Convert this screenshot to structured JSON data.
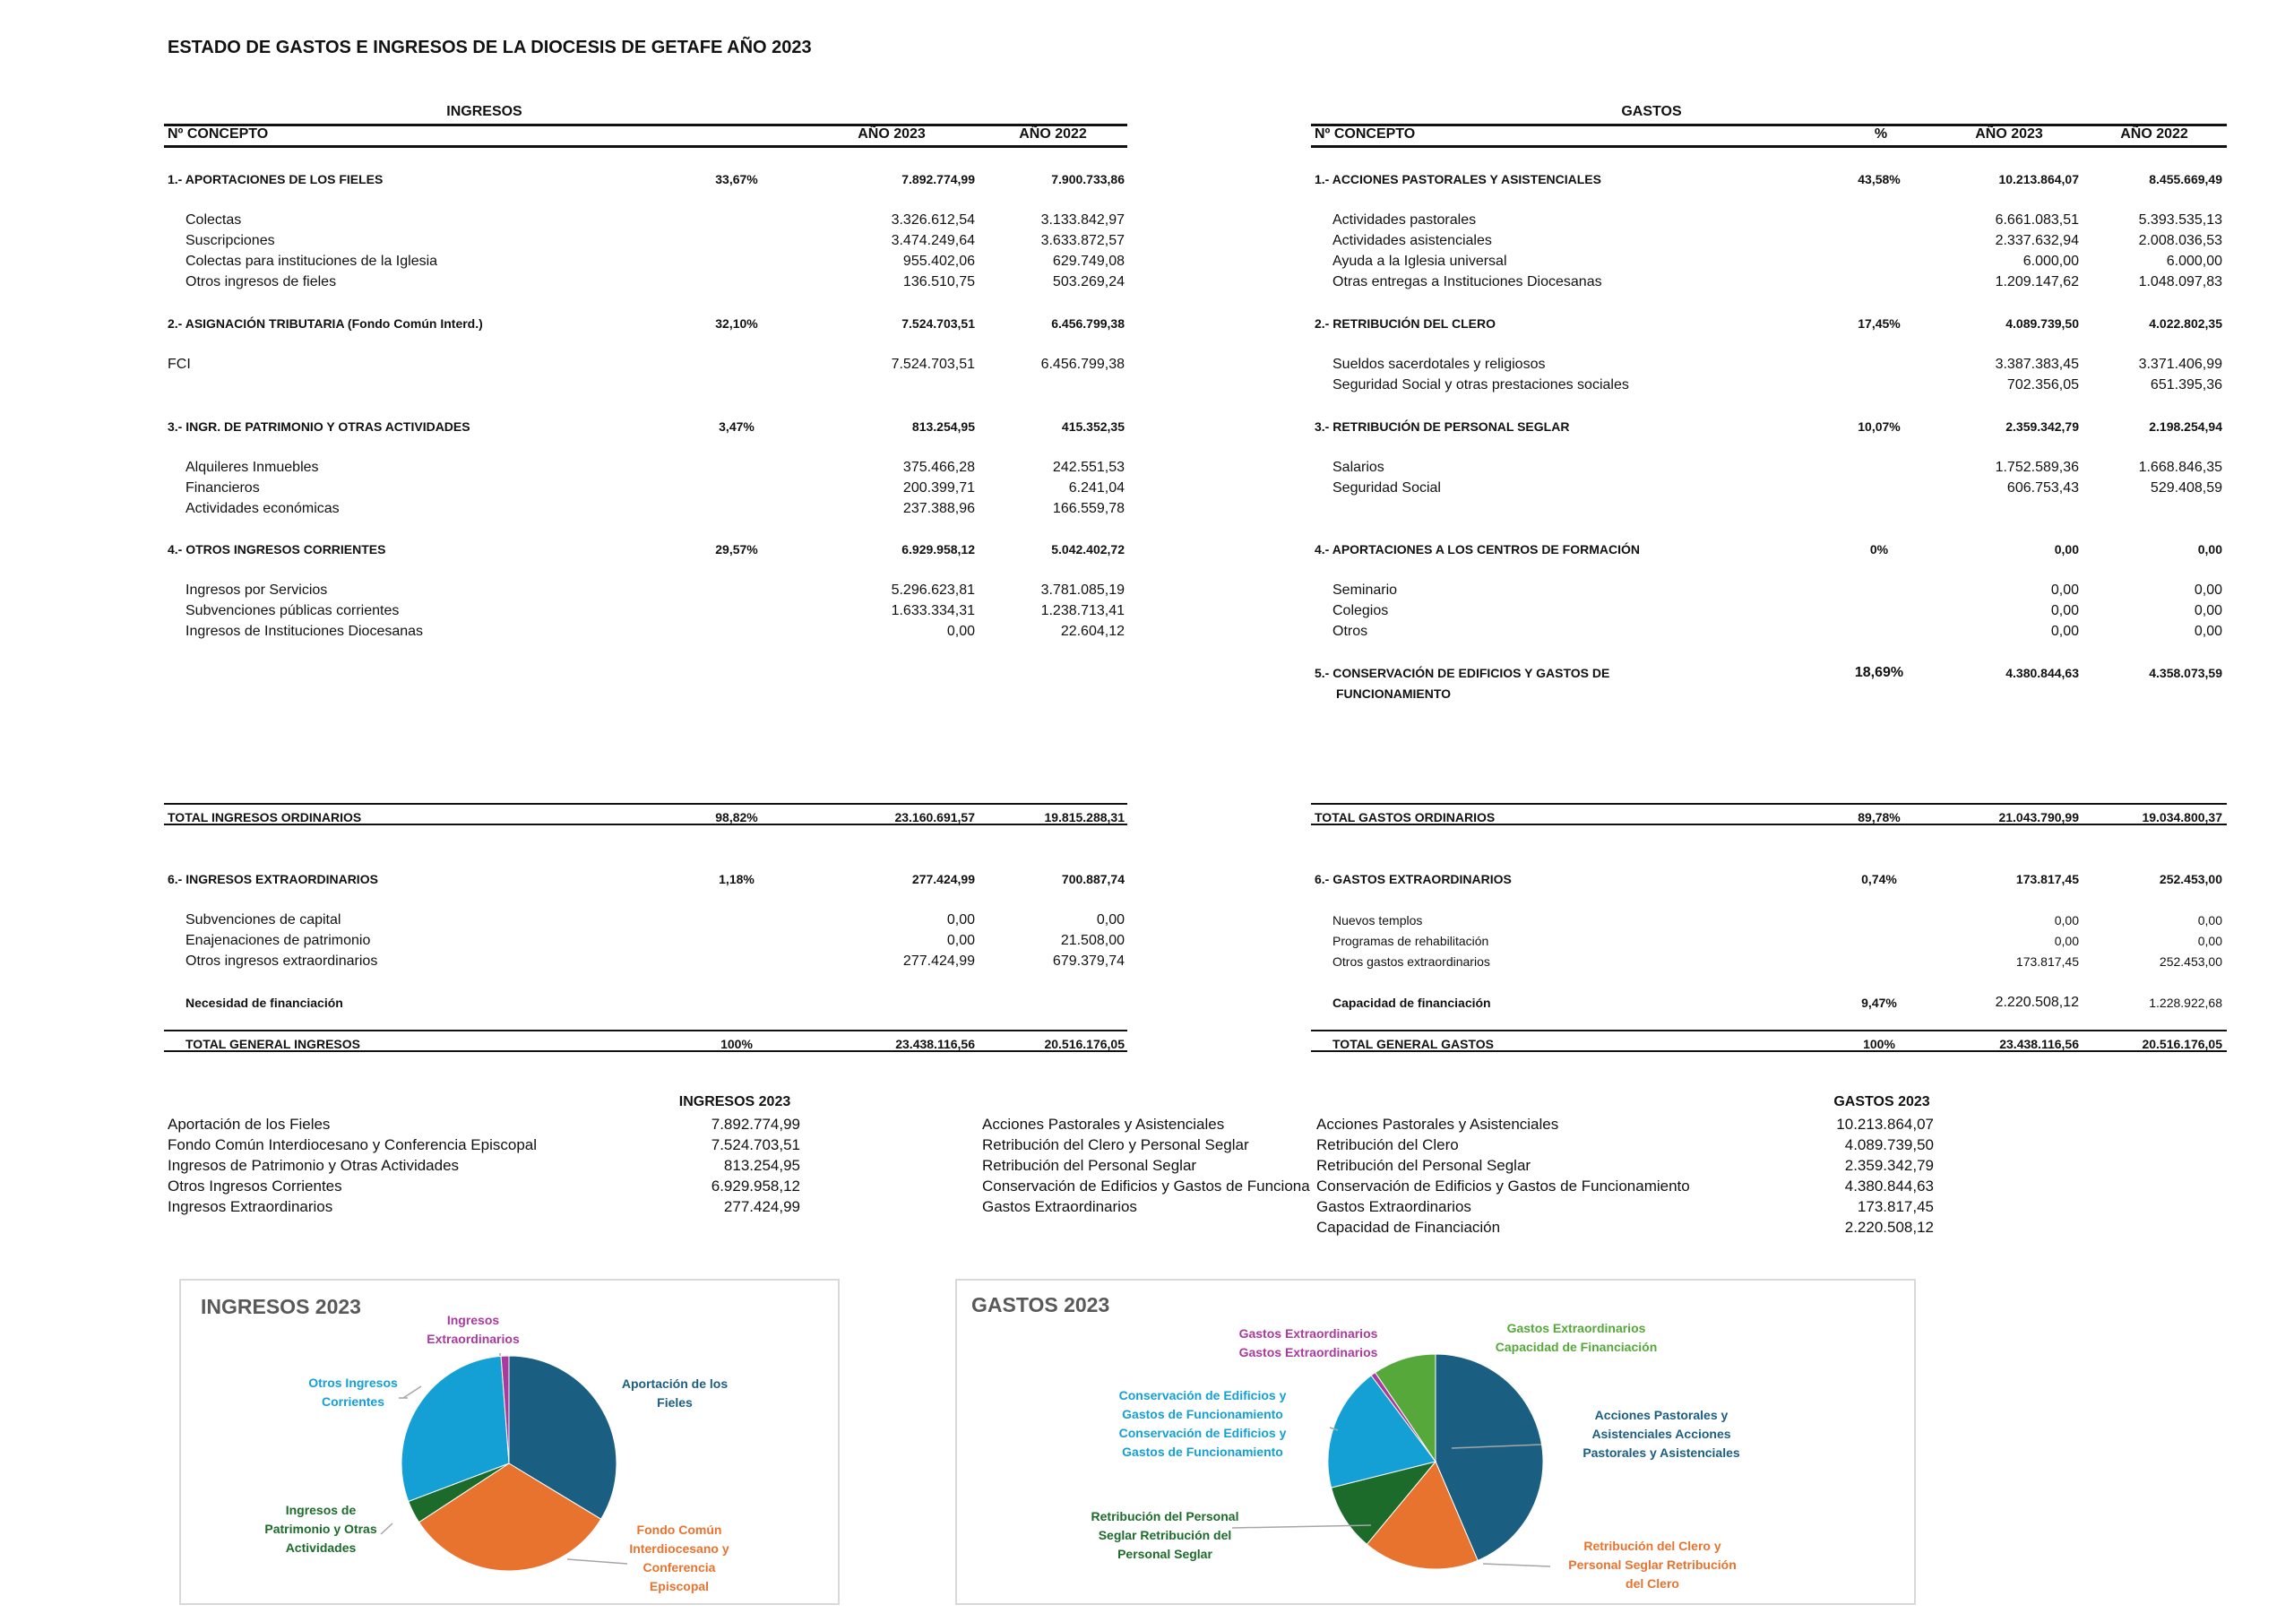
{
  "title": "ESTADO DE GASTOS E INGRESOS DE LA DIOCESIS DE GETAFE   AÑO 2023",
  "ingresos": {
    "heading": "INGRESOS",
    "headers": {
      "concepto": "Nº CONCEPTO",
      "y2023": "AÑO 2023",
      "y2022": "AÑO 2022"
    },
    "rows": [
      {
        "type": "sec",
        "concept": "1.- APORTACIONES DE LOS FIELES",
        "pct": "33,67%",
        "y2023": "7.892.774,99",
        "y2022": "7.900.733,86"
      },
      {
        "type": "item",
        "concept": "Colectas",
        "y2023": "3.326.612,54",
        "y2022": "3.133.842,97"
      },
      {
        "type": "item",
        "concept": "Suscripciones",
        "y2023": "3.474.249,64",
        "y2022": "3.633.872,57"
      },
      {
        "type": "item",
        "concept": "Colectas para instituciones de la Iglesia",
        "y2023": "955.402,06",
        "y2022": "629.749,08"
      },
      {
        "type": "item",
        "concept": "Otros ingresos de fieles",
        "y2023": "136.510,75",
        "y2022": "503.269,24"
      },
      {
        "type": "sec",
        "concept": "2.- ASIGNACIÓN TRIBUTARIA (Fondo Común Interd.)",
        "pct": "32,10%",
        "y2023": "7.524.703,51",
        "y2022": "6.456.799,38"
      },
      {
        "type": "plain",
        "concept": "FCI",
        "y2023": "7.524.703,51",
        "y2022": "6.456.799,38"
      },
      {
        "type": "sec",
        "concept": "3.- INGR. DE PATRIMONIO Y OTRAS ACTIVIDADES",
        "pct": "3,47%",
        "y2023": "813.254,95",
        "y2022": "415.352,35"
      },
      {
        "type": "item",
        "concept": "Alquileres Inmuebles",
        "y2023": "375.466,28",
        "y2022": "242.551,53"
      },
      {
        "type": "item",
        "concept": "Financieros",
        "y2023": "200.399,71",
        "y2022": "6.241,04"
      },
      {
        "type": "item",
        "concept": "Actividades económicas",
        "y2023": "237.388,96",
        "y2022": "166.559,78"
      },
      {
        "type": "sec",
        "concept": "4.- OTROS INGRESOS CORRIENTES",
        "pct": "29,57%",
        "y2023": "6.929.958,12",
        "y2022": "5.042.402,72"
      },
      {
        "type": "item",
        "concept": "Ingresos por Servicios",
        "y2023": "5.296.623,81",
        "y2022": "3.781.085,19"
      },
      {
        "type": "item",
        "concept": "Subvenciones públicas corrientes",
        "y2023": "1.633.334,31",
        "y2022": "1.238.713,41"
      },
      {
        "type": "item",
        "concept": "Ingresos de Instituciones Diocesanas",
        "y2023": "0,00",
        "y2022": "22.604,12"
      },
      {
        "type": "total",
        "concept": "TOTAL INGRESOS ORDINARIOS",
        "pct": "98,82%",
        "y2023": "23.160.691,57",
        "y2022": "19.815.288,31"
      },
      {
        "type": "sec",
        "concept": "6.- INGRESOS EXTRAORDINARIOS",
        "pct": "1,18%",
        "y2023": "277.424,99",
        "y2022": "700.887,74"
      },
      {
        "type": "item",
        "concept": "Subvenciones de capital",
        "y2023": "0,00",
        "y2022": "0,00"
      },
      {
        "type": "item",
        "concept": "Enajenaciones de patrimonio",
        "y2023": "0,00",
        "y2022": "21.508,00"
      },
      {
        "type": "item",
        "concept": "Otros ingresos extraordinarios",
        "y2023": "277.424,99",
        "y2022": "679.379,74"
      },
      {
        "type": "secind",
        "concept": "Necesidad de financiación"
      },
      {
        "type": "totalind",
        "concept": "TOTAL GENERAL INGRESOS",
        "pct": "100%",
        "y2023": "23.438.116,56",
        "y2022": "20.516.176,05"
      }
    ]
  },
  "gastos": {
    "heading": "GASTOS",
    "headers": {
      "concepto": "Nº CONCEPTO",
      "pct": "%",
      "y2023": "AÑO 2023",
      "y2022": "AÑO 2022"
    },
    "rows": [
      {
        "type": "sec",
        "concept": "1.- ACCIONES PASTORALES Y ASISTENCIALES",
        "pct": "43,58%",
        "y2023": "10.213.864,07",
        "y2022": "8.455.669,49"
      },
      {
        "type": "item",
        "concept": "Actividades pastorales",
        "y2023": "6.661.083,51",
        "y2022": "5.393.535,13"
      },
      {
        "type": "item",
        "concept": "Actividades asistenciales",
        "y2023": "2.337.632,94",
        "y2022": "2.008.036,53"
      },
      {
        "type": "item",
        "concept": "Ayuda a la Iglesia universal",
        "y2023": "6.000,00",
        "y2022": "6.000,00"
      },
      {
        "type": "item",
        "concept": "Otras entregas a Instituciones Diocesanas",
        "y2023": "1.209.147,62",
        "y2022": "1.048.097,83"
      },
      {
        "type": "sec",
        "concept": "2.- RETRIBUCIÓN DEL CLERO",
        "pct": "17,45%",
        "y2023": "4.089.739,50",
        "y2022": "4.022.802,35"
      },
      {
        "type": "item",
        "concept": "Sueldos sacerdotales y religiosos",
        "y2023": "3.387.383,45",
        "y2022": "3.371.406,99"
      },
      {
        "type": "item",
        "concept": "Seguridad Social y otras prestaciones sociales",
        "y2023": "702.356,05",
        "y2022": "651.395,36"
      },
      {
        "type": "sec",
        "concept": "3.- RETRIBUCIÓN DE PERSONAL SEGLAR",
        "pct": "10,07%",
        "y2023": "2.359.342,79",
        "y2022": "2.198.254,94"
      },
      {
        "type": "item",
        "concept": "Salarios",
        "y2023": "1.752.589,36",
        "y2022": "1.668.846,35"
      },
      {
        "type": "item",
        "concept": "Seguridad Social",
        "y2023": "606.753,43",
        "y2022": "529.408,59"
      },
      {
        "type": "sec",
        "concept": "4.- APORTACIONES A LOS CENTROS DE FORMACIÓN",
        "pct": "0%",
        "y2023": "0,00",
        "y2022": "0,00"
      },
      {
        "type": "item",
        "concept": "Seminario",
        "y2023": "0,00",
        "y2022": "0,00"
      },
      {
        "type": "item",
        "concept": "Colegios",
        "y2023": "0,00",
        "y2022": "0,00"
      },
      {
        "type": "item",
        "concept": "Otros",
        "y2023": "0,00",
        "y2022": "0,00"
      },
      {
        "type": "sec",
        "concept": "5.- CONSERVACIÓN DE EDIFICIOS Y GASTOS DE",
        "pct": "18,69%",
        "y2023": "4.380.844,63",
        "y2022": "4.358.073,59"
      },
      {
        "type": "seccont",
        "concept": "FUNCIONAMIENTO"
      },
      {
        "type": "total",
        "concept": "TOTAL GASTOS ORDINARIOS",
        "pct": "89,78%",
        "y2023": "21.043.790,99",
        "y2022": "19.034.800,37"
      },
      {
        "type": "sec",
        "concept": "6.- GASTOS EXTRAORDINARIOS",
        "pct": "0,74%",
        "y2023": "173.817,45",
        "y2022": "252.453,00"
      },
      {
        "type": "small",
        "concept": "Nuevos templos",
        "y2023": "0,00",
        "y2022": "0,00"
      },
      {
        "type": "small",
        "concept": "Programas de rehabilitación",
        "y2023": "0,00",
        "y2022": "0,00"
      },
      {
        "type": "small",
        "concept": "Otros gastos extraordinarios",
        "y2023": "173.817,45",
        "y2022": "252.453,00"
      },
      {
        "type": "secindval",
        "concept": "Capacidad de financiación",
        "pct": "9,47%",
        "y2023": "2.220.508,12",
        "y2022": "1.228.922,68"
      },
      {
        "type": "totalind",
        "concept": "TOTAL GENERAL GASTOS",
        "pct": "100%",
        "y2023": "23.438.116,56",
        "y2022": "20.516.176,05"
      }
    ]
  },
  "summary": {
    "ingresos_header": "INGRESOS 2023",
    "ingresos": [
      {
        "label": "Aportación de los Fieles",
        "value": "7.892.774,99"
      },
      {
        "label": "Fondo Común Interdiocesano y Conferencia Episcopal",
        "value": "7.524.703,51"
      },
      {
        "label": "Ingresos de Patrimonio y Otras Actividades",
        "value": "813.254,95"
      },
      {
        "label": "Otros Ingresos Corrientes",
        "value": "6.929.958,12"
      },
      {
        "label": "Ingresos Extraordinarios",
        "value": "277.424,99"
      }
    ],
    "gastos_header": "GASTOS 2023",
    "gastos_col1": [
      "Acciones Pastorales y Asistenciales",
      "Retribución del Clero y Personal Seglar",
      "Retribución del Personal Seglar",
      "Conservación de Edificios y Gastos de Funciona",
      "Gastos Extraordinarios"
    ],
    "gastos": [
      {
        "label": "Acciones Pastorales y Asistenciales",
        "value": "10.213.864,07"
      },
      {
        "label": "Retribución del Clero",
        "value": "4.089.739,50"
      },
      {
        "label": "Retribución del Personal Seglar",
        "value": "2.359.342,79"
      },
      {
        "label": "Conservación de Edificios y Gastos de Funcionamiento",
        "value": "4.380.844,63"
      },
      {
        "label": "Gastos Extraordinarios",
        "value": "173.817,45"
      },
      {
        "label": "Capacidad de Financiación",
        "value": "2.220.508,12"
      }
    ]
  },
  "chart_data": [
    {
      "type": "pie",
      "title": "INGRESOS 2023",
      "slices": [
        {
          "name": "Aportación de los Fieles",
          "value": 7892774.99,
          "color": "#1a5e82",
          "label": [
            "Aportación de los",
            "Fieles"
          ]
        },
        {
          "name": "Fondo Común Interdiocesano y Conferencia Episcopal",
          "value": 7524703.51,
          "color": "#e8732e",
          "label": [
            "Fondo Común",
            "Interdiocesano y",
            "Conferencia",
            "Episcopal"
          ]
        },
        {
          "name": "Ingresos de Patrimonio y Otras Actividades",
          "value": 813254.95,
          "color": "#1d6b2b",
          "label": [
            "Ingresos de",
            "Patrimonio y Otras",
            "Actividades"
          ]
        },
        {
          "name": "Otros Ingresos Corrientes",
          "value": 6929958.12,
          "color": "#14a0d4",
          "label": [
            "Otros Ingresos",
            "Corrientes"
          ]
        },
        {
          "name": "Ingresos Extraordinarios",
          "value": 277424.99,
          "color": "#a93a9e",
          "label": [
            "Ingresos",
            "Extraordinarios"
          ]
        }
      ]
    },
    {
      "type": "pie",
      "title": "GASTOS 2023",
      "slices": [
        {
          "name": "Acciones Pastorales y Asistenciales",
          "value": 10213864.07,
          "color": "#1a5e82",
          "label": [
            "Acciones Pastorales y",
            "Asistenciales Acciones",
            "Pastorales y Asistenciales"
          ]
        },
        {
          "name": "Retribución del Clero",
          "value": 4089739.5,
          "color": "#e8732e",
          "label": [
            "Retribución del Clero y",
            "Personal Seglar Retribución",
            "del Clero"
          ]
        },
        {
          "name": "Retribución del Personal Seglar",
          "value": 2359342.79,
          "color": "#1d6b2b",
          "label": [
            "Retribución del Personal",
            "Seglar Retribución del",
            "Personal Seglar"
          ]
        },
        {
          "name": "Conservación de Edificios y Gastos de Funcionamiento",
          "value": 4380844.63,
          "color": "#14a0d4",
          "label": [
            "Conservación de Edificios y",
            "Gastos de Funcionamiento",
            "Conservación de Edificios y",
            "Gastos de Funcionamiento"
          ]
        },
        {
          "name": "Gastos Extraordinarios",
          "value": 173817.45,
          "color": "#a93a9e",
          "label": [
            "Gastos Extraordinarios",
            "Gastos Extraordinarios"
          ]
        },
        {
          "name": "Capacidad de Financiación",
          "value": 2220508.12,
          "color": "#56a83a",
          "label": [
            "Gastos Extraordinarios",
            "Capacidad de Financiación"
          ]
        }
      ]
    }
  ]
}
